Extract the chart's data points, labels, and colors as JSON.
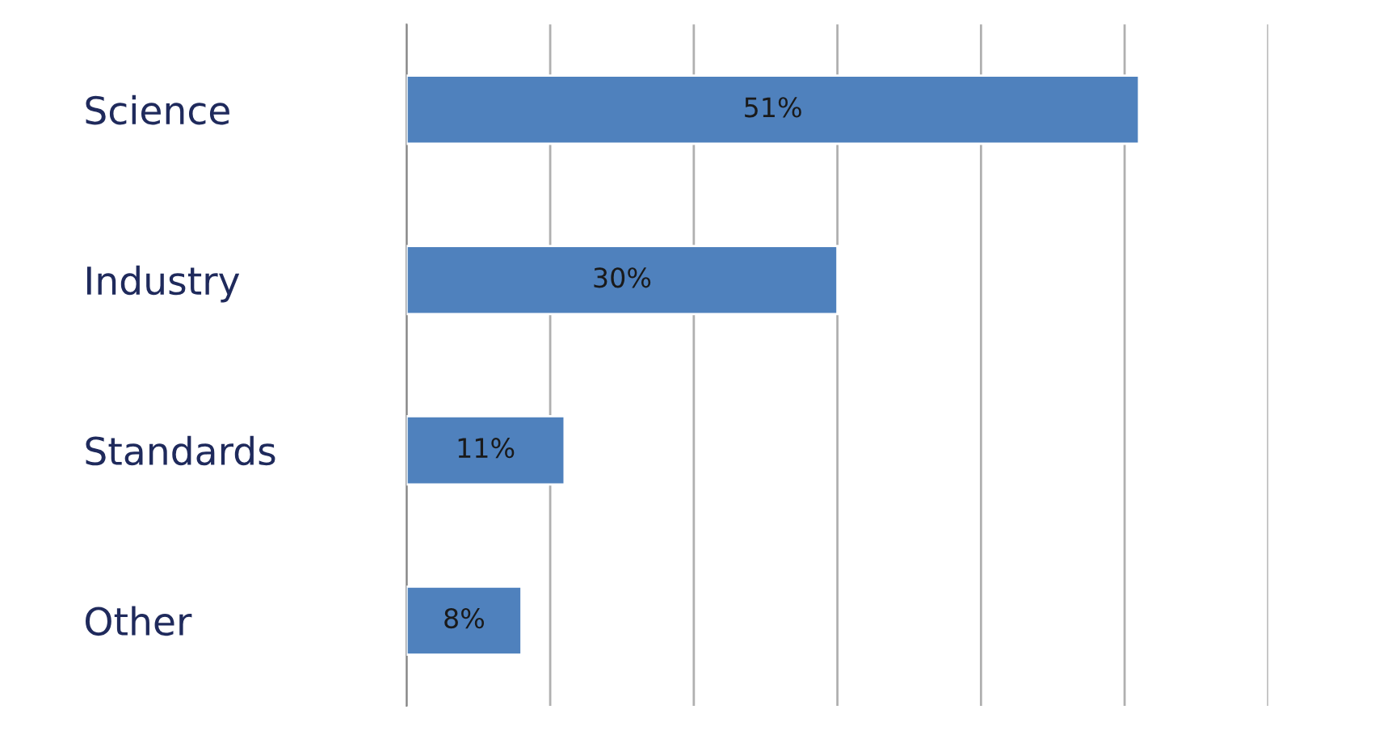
{
  "chart_data": {
    "type": "bar",
    "orientation": "horizontal",
    "categories": [
      "Science",
      "Industry",
      "Standards",
      "Other"
    ],
    "values": [
      51,
      30,
      11,
      8
    ],
    "color": "#4f81bd",
    "value_labels": [
      "51%",
      "30%",
      "11%",
      "8%"
    ],
    "xlim": [
      0,
      60
    ],
    "xticks": [
      {
        "value": 0,
        "label": null
      },
      {
        "value": 10,
        "label": null
      },
      {
        "value": 20,
        "label": null
      },
      {
        "value": 30,
        "label": null
      },
      {
        "value": 40,
        "label": null
      },
      {
        "value": 50,
        "label": null
      },
      {
        "value": 60,
        "label": null
      }
    ],
    "grid": "x",
    "tick_labels": "y"
  }
}
